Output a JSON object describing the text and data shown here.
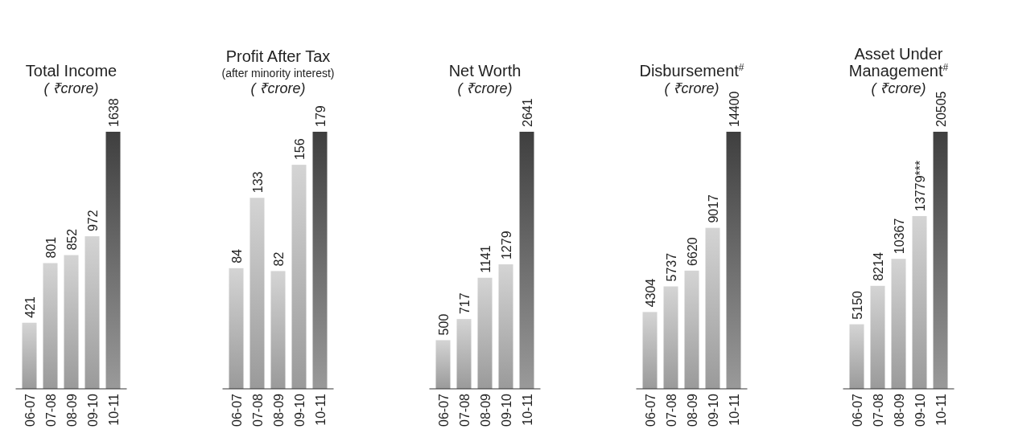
{
  "chart_data": [
    {
      "type": "bar",
      "title": "Total Income",
      "subtitle": "( ₹crore)",
      "categories": [
        "06-07",
        "07-08",
        "08-09",
        "09-10",
        "10-11"
      ],
      "values": [
        421,
        801,
        852,
        972,
        1638
      ],
      "colors": [
        "#d4d4d4",
        "#d4d4d4",
        "#d4d4d4",
        "#d4d4d4",
        "#3f3f3f"
      ],
      "data_labels": true
    },
    {
      "type": "bar",
      "title": "Profit After Tax",
      "subtitle": "( ₹crore)",
      "annotations": [
        "(after minority interest)"
      ],
      "categories": [
        "06-07",
        "07-08",
        "08-09",
        "09-10",
        "10-11"
      ],
      "values": [
        84,
        133,
        82,
        156,
        179
      ],
      "colors": [
        "#d4d4d4",
        "#d4d4d4",
        "#d4d4d4",
        "#d4d4d4",
        "#3f3f3f"
      ],
      "data_labels": true
    },
    {
      "type": "bar",
      "title": "Net Worth",
      "subtitle": "( ₹crore)",
      "categories": [
        "06-07",
        "07-08",
        "08-09",
        "09-10",
        "10-11"
      ],
      "values": [
        500,
        717,
        1141,
        1279,
        2641
      ],
      "colors": [
        "#d4d4d4",
        "#d4d4d4",
        "#d4d4d4",
        "#d4d4d4",
        "#3f3f3f"
      ],
      "data_labels": true
    },
    {
      "type": "bar",
      "title": "Disbursement$^{#}$",
      "subtitle": "( ₹crore)",
      "categories": [
        "06-07",
        "07-08",
        "08-09",
        "09-10",
        "10-11"
      ],
      "values": [
        4304,
        5737,
        6620,
        9017,
        14400
      ],
      "colors": [
        "#d4d4d4",
        "#d4d4d4",
        "#d4d4d4",
        "#d4d4d4",
        "#3f3f3f"
      ],
      "data_labels": true
    },
    {
      "type": "bar",
      "title": "Asset Under Management$^{#}$",
      "subtitle": "( ₹crore)",
      "categories": [
        "06-07",
        "07-08",
        "08-09",
        "09-10",
        "10-11"
      ],
      "values": [
        5150,
        8214,
        10367,
        13779,
        20505
      ],
      "value_labels": [
        "5150",
        "8214",
        "10367",
        "13779***",
        "20505"
      ],
      "colors": [
        "#d4d4d4",
        "#d4d4d4",
        "#d4d4d4",
        "#d4d4d4",
        "#3f3f3f"
      ]
    }
  ]
}
